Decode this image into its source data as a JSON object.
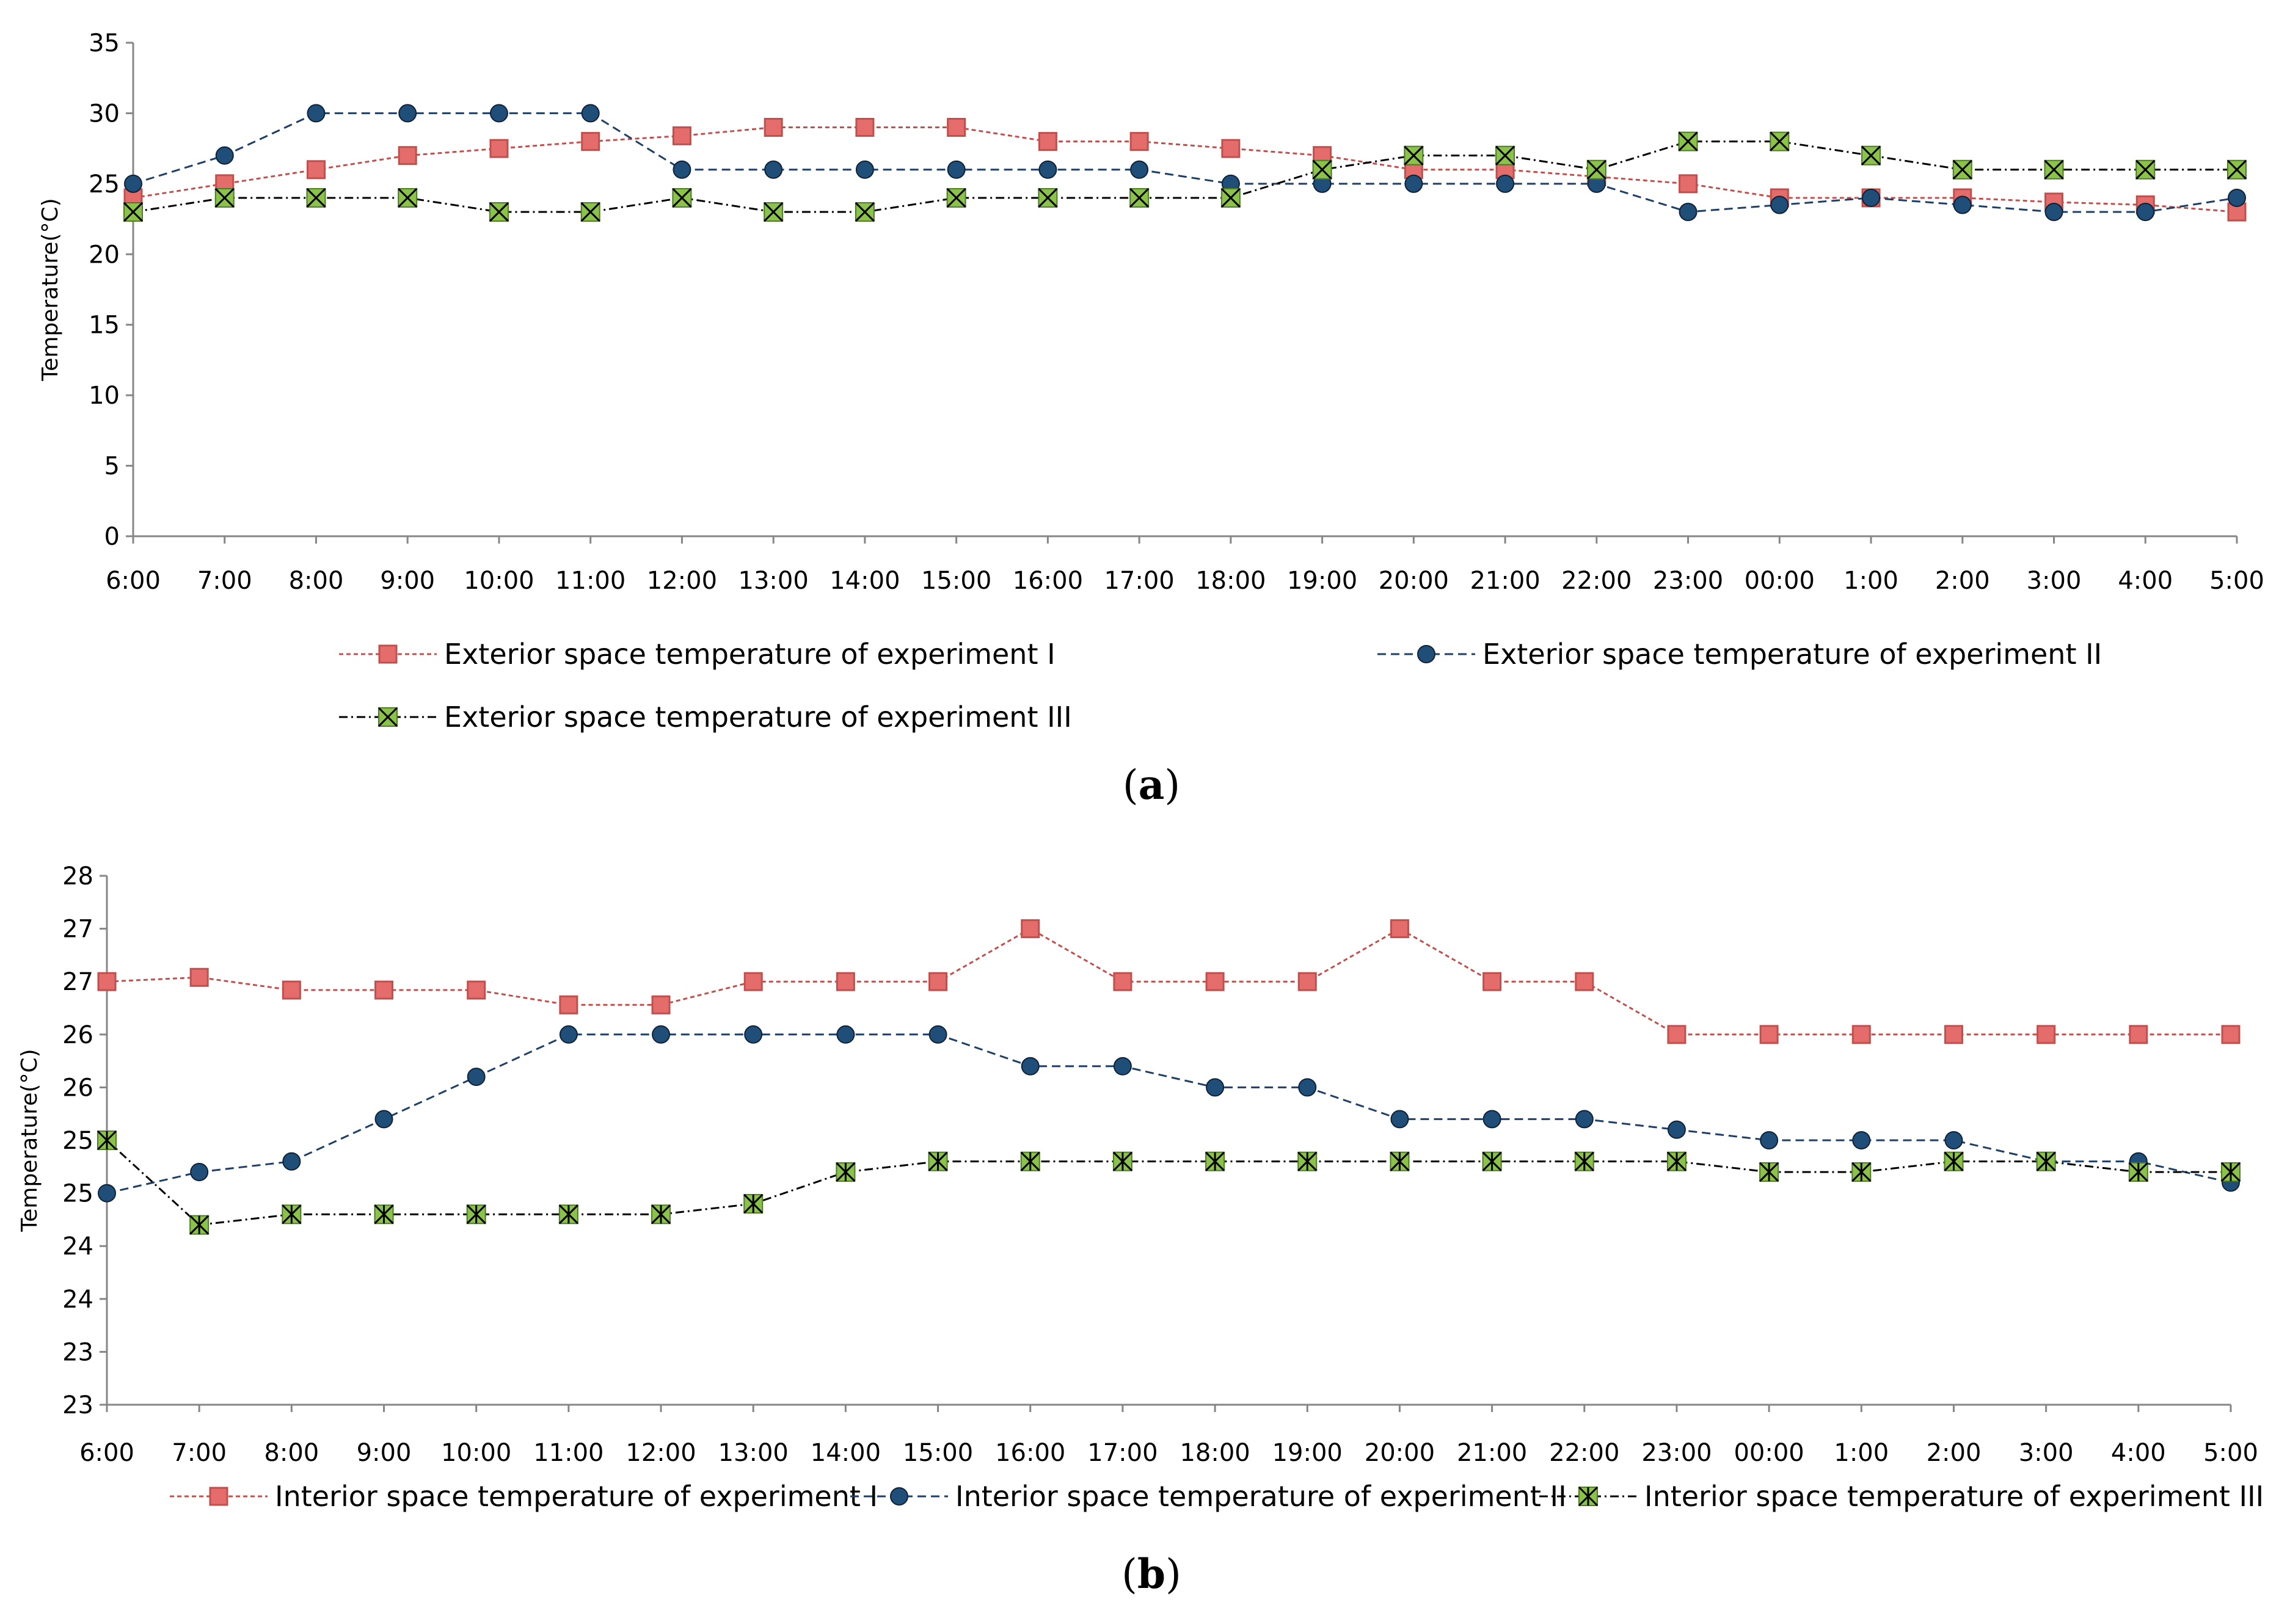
{
  "colors": {
    "series1_stroke": "#c0504d",
    "series1_fill": "#e46c6a",
    "series2_stroke": "#1f3f66",
    "series2_fill": "#1f4e79",
    "series3_stroke": "#000000",
    "series3_fill": "#8bc34a",
    "axis": "#868686"
  },
  "chart_data": [
    {
      "type": "line",
      "caption_open": "(",
      "caption_letter": "a",
      "caption_close": ")",
      "ylabel": "Temperature(°C)",
      "xlabel": "",
      "ylim": [
        0,
        35
      ],
      "yticks": [
        0,
        5,
        10,
        15,
        20,
        25,
        30,
        35
      ],
      "categories": [
        "6:00",
        "7:00",
        "8:00",
        "9:00",
        "10:00",
        "11:00",
        "12:00",
        "13:00",
        "14:00",
        "15:00",
        "16:00",
        "17:00",
        "18:00",
        "19:00",
        "20:00",
        "21:00",
        "22:00",
        "23:00",
        "00:00",
        "1:00",
        "2:00",
        "3:00",
        "4:00",
        "5:00"
      ],
      "series": [
        {
          "name": "Exterior space temperature of experiment I",
          "marker": "square",
          "dash": "short",
          "values": [
            24,
            25,
            26,
            27,
            27.5,
            28,
            28.4,
            29,
            29,
            29,
            28,
            28,
            27.5,
            27,
            26,
            26,
            25.5,
            25,
            24,
            24,
            24,
            23.7,
            23.5,
            23
          ]
        },
        {
          "name": "Exterior space temperature of experiment II",
          "marker": "circle",
          "dash": "long",
          "values": [
            25,
            27,
            30,
            30,
            30,
            30,
            26,
            26,
            26,
            26,
            26,
            26,
            25,
            25,
            25,
            25,
            25,
            23,
            23.5,
            24,
            23.5,
            23,
            23,
            24
          ]
        },
        {
          "name": "Exterior space temperature of experiment III",
          "marker": "x",
          "dash": "dashdot",
          "values": [
            23,
            24,
            24,
            24,
            23,
            23,
            24,
            23,
            23,
            24,
            24,
            24,
            24,
            26,
            27,
            27,
            26,
            28,
            28,
            27,
            26,
            26,
            26,
            26
          ]
        }
      ]
    },
    {
      "type": "line",
      "caption_open": "(",
      "caption_letter": "b",
      "caption_close": ")",
      "ylabel": "Temperature(°C)",
      "xlabel": "",
      "ylim": [
        22.8,
        27.8
      ],
      "yticks": [
        22.8,
        23.3,
        23.8,
        24.3,
        24.8,
        25.3,
        25.8,
        26.3,
        26.8,
        27.3,
        27.8
      ],
      "ytick_labels": [
        "23",
        "23",
        "24",
        "24",
        "25",
        "25",
        "26",
        "26",
        "27",
        "27",
        "28"
      ],
      "categories": [
        "6:00",
        "7:00",
        "8:00",
        "9:00",
        "10:00",
        "11:00",
        "12:00",
        "13:00",
        "14:00",
        "15:00",
        "16:00",
        "17:00",
        "18:00",
        "19:00",
        "20:00",
        "21:00",
        "22:00",
        "23:00",
        "00:00",
        "1:00",
        "2:00",
        "3:00",
        "4:00",
        "5:00"
      ],
      "series": [
        {
          "name": "Interior space temperature of experiment I",
          "marker": "square",
          "dash": "short",
          "values": [
            26.8,
            26.84,
            26.72,
            26.72,
            26.72,
            26.58,
            26.58,
            26.8,
            26.8,
            26.8,
            27.3,
            26.8,
            26.8,
            26.8,
            27.3,
            26.8,
            26.8,
            26.3,
            26.3,
            26.3,
            26.3,
            26.3,
            26.3,
            26.3
          ]
        },
        {
          "name": "Interior space temperature of experiment II",
          "marker": "circle",
          "dash": "long",
          "values": [
            24.8,
            25.0,
            25.1,
            25.5,
            25.9,
            26.3,
            26.3,
            26.3,
            26.3,
            26.3,
            26.0,
            26.0,
            25.8,
            25.8,
            25.5,
            25.5,
            25.5,
            25.4,
            25.3,
            25.3,
            25.3,
            25.1,
            25.1,
            24.9
          ]
        },
        {
          "name": "Interior space temperature of experiment III",
          "marker": "asterisk",
          "dash": "dashdot",
          "values": [
            25.3,
            24.5,
            24.6,
            24.6,
            24.6,
            24.6,
            24.6,
            24.7,
            25.0,
            25.1,
            25.1,
            25.1,
            25.1,
            25.1,
            25.1,
            25.1,
            25.1,
            25.1,
            25.0,
            25.0,
            25.1,
            25.1,
            25.0,
            25.0
          ]
        }
      ]
    }
  ]
}
